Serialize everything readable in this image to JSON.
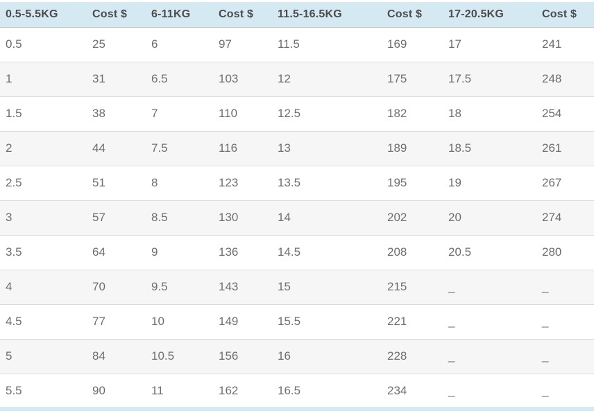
{
  "colors": {
    "header_bg": "#d5e9f2",
    "header_text": "#4c4c4c",
    "cell_text": "#6e6e6e",
    "row_stripe": "#f6f6f6",
    "row_border": "#dadada",
    "header_border": "#c3c3c3",
    "page_bg": "#ffffff"
  },
  "table": {
    "columns": [
      {
        "label": "0.5-5.5KG"
      },
      {
        "label": "Cost $"
      },
      {
        "label": "6-11KG"
      },
      {
        "label": "Cost $"
      },
      {
        "label": "11.5-16.5KG"
      },
      {
        "label": "Cost $"
      },
      {
        "label": "17-20.5KG"
      },
      {
        "label": "Cost $"
      }
    ],
    "rows": [
      [
        "0.5",
        "25",
        "6",
        "97",
        "11.5",
        "169",
        "17",
        "241"
      ],
      [
        "1",
        "31",
        "6.5",
        "103",
        "12",
        "175",
        "17.5",
        "248"
      ],
      [
        "1.5",
        "38",
        "7",
        "110",
        "12.5",
        "182",
        "18",
        "254"
      ],
      [
        "2",
        "44",
        "7.5",
        "116",
        "13",
        "189",
        "18.5",
        "261"
      ],
      [
        "2.5",
        "51",
        "8",
        "123",
        "13.5",
        "195",
        "19",
        "267"
      ],
      [
        "3",
        "57",
        "8.5",
        "130",
        "14",
        "202",
        "20",
        "274"
      ],
      [
        "3.5",
        "64",
        "9",
        "136",
        "14.5",
        "208",
        "20.5",
        "280"
      ],
      [
        "4",
        "70",
        "9.5",
        "143",
        "15",
        "215",
        "_",
        "_"
      ],
      [
        "4.5",
        "77",
        "10",
        "149",
        "15.5",
        "221",
        "_",
        "_"
      ],
      [
        "5",
        "84",
        "10.5",
        "156",
        "16",
        "228",
        "_",
        "_"
      ],
      [
        "5.5",
        "90",
        "11",
        "162",
        "16.5",
        "234",
        "_",
        "_"
      ]
    ]
  }
}
